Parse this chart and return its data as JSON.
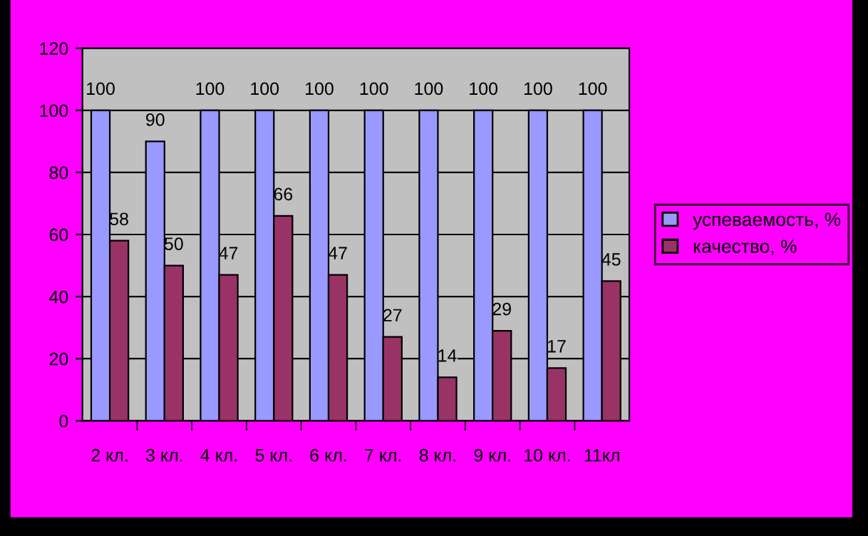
{
  "chart_data": {
    "type": "bar",
    "categories": [
      "2 кл.",
      "3 кл.",
      "4 кл.",
      "5 кл.",
      "6 кл.",
      "7 кл.",
      "8 кл.",
      "9 кл.",
      "10 кл.",
      "11кл"
    ],
    "series": [
      {
        "name": "успеваемость, %",
        "color": "#9999ff",
        "values": [
          100,
          90,
          100,
          100,
          100,
          100,
          100,
          100,
          100,
          100
        ]
      },
      {
        "name": "качество, %",
        "color": "#993366",
        "values": [
          58,
          50,
          47,
          66,
          47,
          27,
          14,
          29,
          17,
          45
        ]
      }
    ],
    "ylim": [
      0,
      120
    ],
    "yticks": [
      0,
      20,
      40,
      60,
      80,
      100,
      120
    ],
    "grid": "y",
    "legend": "right",
    "data_labels": true
  }
}
